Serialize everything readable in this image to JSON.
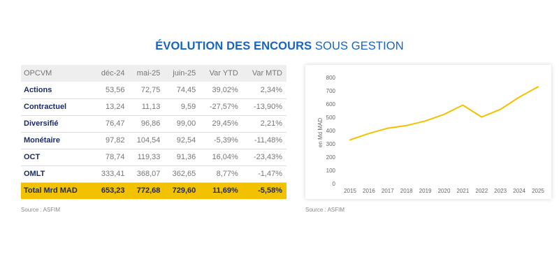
{
  "title": {
    "bold": "ÉVOLUTION DES ENCOURS",
    "normal": "SOUS GESTION"
  },
  "table": {
    "headers": [
      "OPCVM",
      "déc-24",
      "mai-25",
      "juin-25",
      "Var YTD",
      "Var MTD"
    ],
    "rows": [
      [
        "Actions",
        "53,56",
        "72,75",
        "74,45",
        "39,02%",
        "2,34%"
      ],
      [
        "Contractuel",
        "13,24",
        "11,13",
        "9,59",
        "-27,57%",
        "-13,90%"
      ],
      [
        "Diversifié",
        "76,47",
        "96,86",
        "99,00",
        "29,45%",
        "2,21%"
      ],
      [
        "Monétaire",
        "97,82",
        "104,54",
        "92,54",
        "-5,39%",
        "-11,48%"
      ],
      [
        "OCT",
        "78,74",
        "119,33",
        "91,36",
        "16,04%",
        "-23,43%"
      ],
      [
        "OMLT",
        "333,41",
        "368,07",
        "362,65",
        "8,77%",
        "-1,47%"
      ]
    ],
    "total": [
      "Total Mrd MAD",
      "653,23",
      "772,68",
      "729,60",
      "11,69%",
      "-5,58%"
    ],
    "source": "Source : ASFIM"
  },
  "chart_data": {
    "type": "line",
    "x": [
      "2015",
      "2016",
      "2017",
      "2018",
      "2019",
      "2020",
      "2021",
      "2022",
      "2023",
      "2024",
      "2025"
    ],
    "series": [
      {
        "values": [
          330,
          378,
          418,
          438,
          472,
          522,
          592,
          502,
          560,
          652,
          730
        ]
      }
    ],
    "ylabel": "en Md MAD",
    "ylim": [
      0,
      800
    ],
    "yticks": [
      0,
      100,
      200,
      300,
      400,
      500,
      600,
      700,
      800
    ],
    "grid": false,
    "color": "#f2c200",
    "source": "Source : ASFIM"
  }
}
